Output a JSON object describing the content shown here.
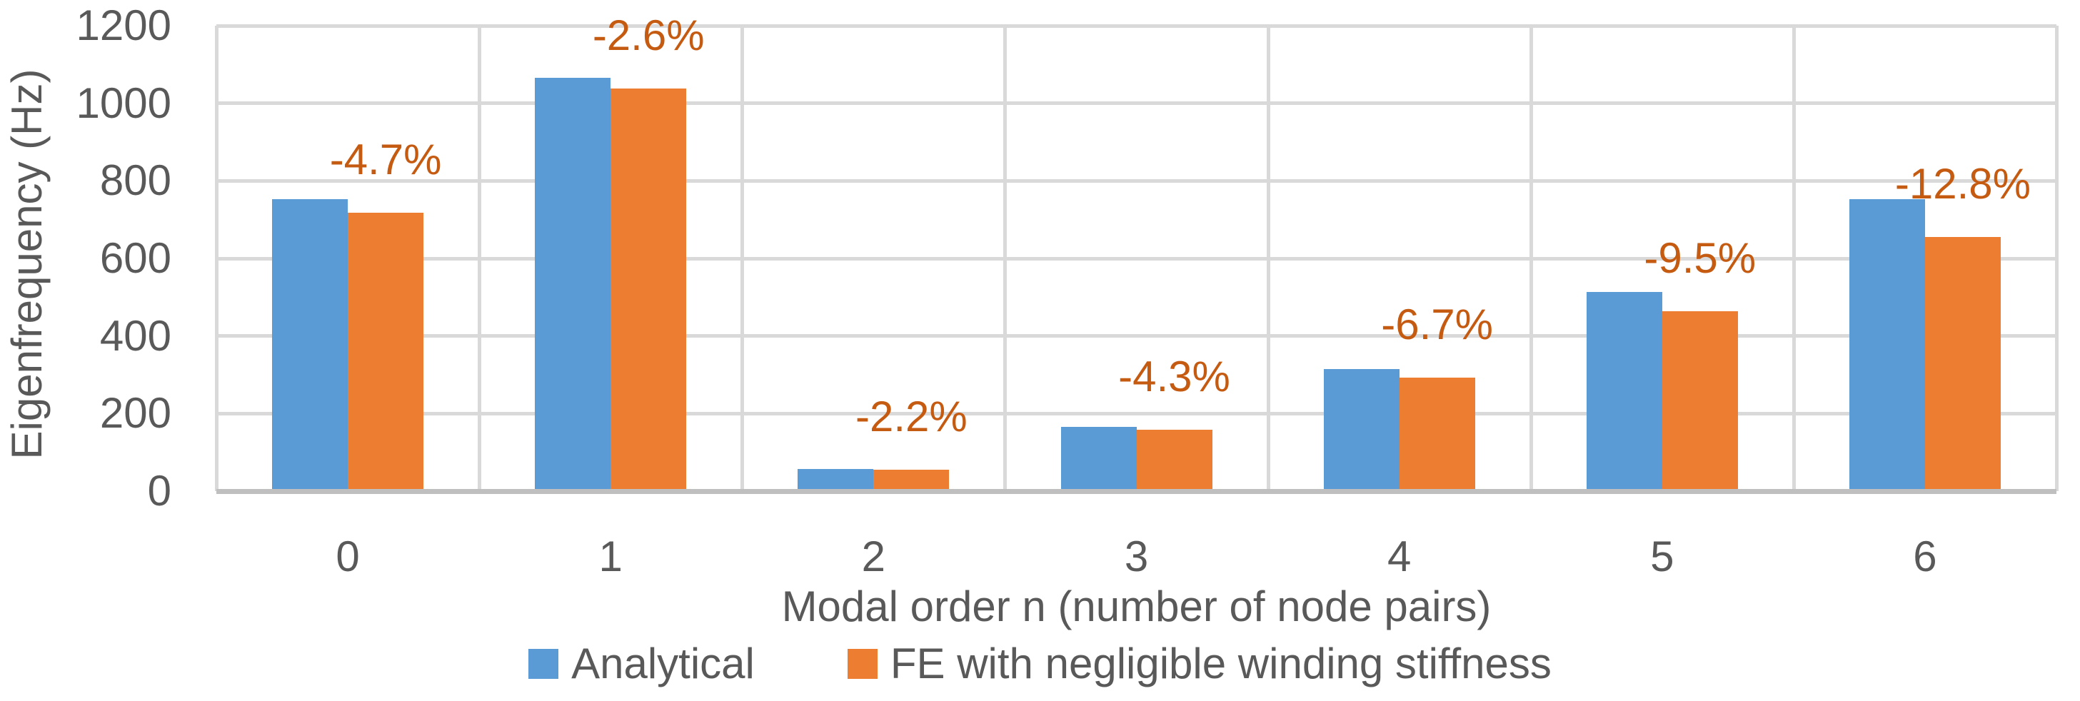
{
  "chart_data": {
    "type": "bar",
    "title": "",
    "xlabel": "Modal order n (number of node pairs)",
    "ylabel": "Eigenfrequency (Hz)",
    "categories": [
      "0",
      "1",
      "2",
      "3",
      "4",
      "5",
      "6"
    ],
    "series": [
      {
        "name": "Analytical",
        "color": "#5B9BD5",
        "values": [
          753,
          1066,
          57,
          165,
          314,
          513,
          752
        ]
      },
      {
        "name": "FE with negligible winding stiffness",
        "color": "#ED7D31",
        "values": [
          718,
          1038,
          56,
          158,
          293,
          464,
          656
        ]
      }
    ],
    "data_labels": {
      "attached_to_series": "FE with negligible winding stiffness",
      "color": "#C55A11",
      "values": [
        "-4.7%",
        "-2.6%",
        "-2.2%",
        "-4.3%",
        "-6.7%",
        "-9.5%",
        "-12.8%"
      ]
    },
    "ylim": [
      0,
      1200
    ],
    "ytick_interval": 200,
    "yticks": [
      "0",
      "200",
      "400",
      "600",
      "800",
      "1000",
      "1200"
    ],
    "grid": true,
    "legend_position": "bottom"
  },
  "colors": {
    "background": "#FFFFFF",
    "gridline": "#D9D9D9",
    "axis_line": "#BFBFBF",
    "axis_text": "#595959",
    "analytical_bar": "#5B9BD5",
    "fe_bar": "#ED7D31",
    "data_label_text": "#C55A11"
  }
}
